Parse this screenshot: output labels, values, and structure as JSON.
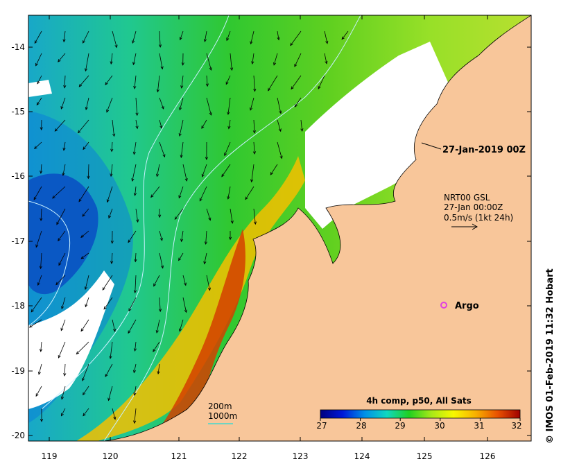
{
  "map": {
    "lon_ticks": [
      "119",
      "120",
      "121",
      "122",
      "123",
      "124",
      "125",
      "126"
    ],
    "lat_ticks": [
      "-14",
      "-15",
      "-16",
      "-17",
      "-18",
      "-19",
      "-20"
    ],
    "colors": {
      "land": "#f8c69a",
      "cloud": "#ffffff",
      "coastline": "#000000",
      "contour": "#c8f0ff",
      "argo": "#e040e0"
    }
  },
  "annotations": {
    "date_stamp": "27-Jan-2019 00Z",
    "current_source": "NRT00 GSL",
    "current_time": "27-Jan 00:00Z",
    "current_scale": "0.5m/s (1kt 24h)",
    "argo_label": "Argo",
    "isobath_200": "200m",
    "isobath_1000": "1000m",
    "credit": "© IMOS 01-Feb-2019 11:32 Hobart"
  },
  "colorbar": {
    "title": "4h comp, p50, All Sats",
    "ticks": [
      "27",
      "28",
      "29",
      "30",
      "31",
      "32"
    ],
    "range": [
      27,
      32
    ],
    "stops": [
      "#00007f",
      "#0018d8",
      "#0090e8",
      "#10d8c0",
      "#20d020",
      "#a8e818",
      "#f8f800",
      "#f8b000",
      "#e85000",
      "#a00000"
    ]
  }
}
